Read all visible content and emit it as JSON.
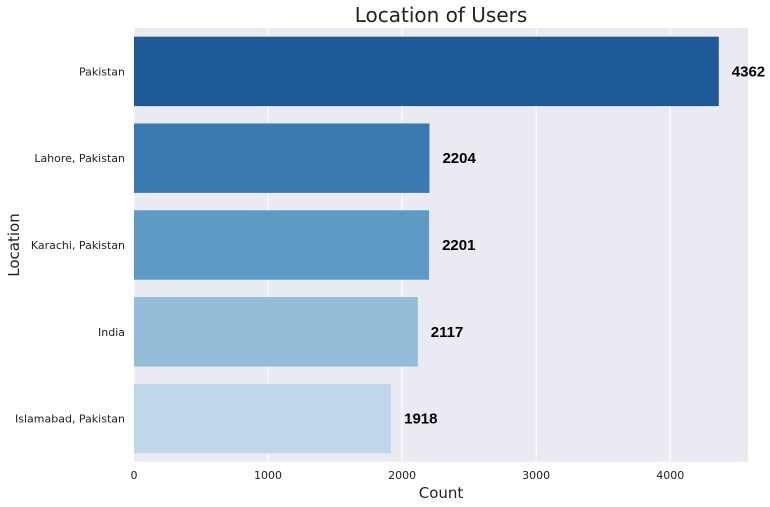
{
  "chart_data": {
    "type": "bar",
    "orientation": "horizontal",
    "title": "Location of Users",
    "xlabel": "Count",
    "ylabel": "Location",
    "categories": [
      "Pakistan",
      "Lahore, Pakistan",
      "Karachi, Pakistan",
      "India",
      "Islamabad, Pakistan"
    ],
    "values": [
      4362,
      2204,
      2201,
      2117,
      1918
    ],
    "data_labels": [
      "4362",
      "2204",
      "2201",
      "2117",
      "1918"
    ],
    "xlim": [
      0,
      4580
    ],
    "xticks": [
      0,
      1000,
      2000,
      3000,
      4000
    ],
    "xtick_labels": [
      "0",
      "1000",
      "2000",
      "3000",
      "4000"
    ],
    "grid": true,
    "colors": {
      "plot_background": "#eaeaf2",
      "grid": "#ffffff",
      "bars": [
        "#1f5a98",
        "#3a7ab2",
        "#5e9bc4",
        "#93bdd8",
        "#c0d7ea"
      ]
    }
  }
}
